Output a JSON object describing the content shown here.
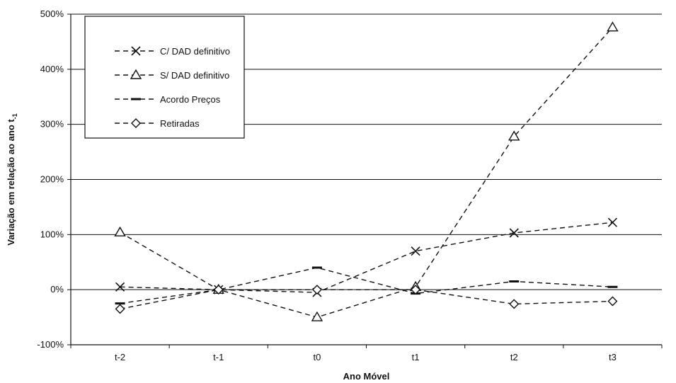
{
  "chart_data": {
    "type": "line",
    "xlabel": "Ano Móvel",
    "ylabel": "Variação em relação ao ano t",
    "ylabel_sub": "-1",
    "categories": [
      "t-2",
      "t-1",
      "t0",
      "t1",
      "t2",
      "t3"
    ],
    "ylim": [
      -100,
      500
    ],
    "yticks": [
      -100,
      0,
      100,
      200,
      300,
      400,
      500
    ],
    "ytick_labels": [
      "-100%",
      "0%",
      "100%",
      "200%",
      "300%",
      "400%",
      "500%"
    ],
    "grid": "horizontal",
    "legend_position": "top-left",
    "series": [
      {
        "name": "C/ DAD definitivo",
        "marker": "x",
        "values": [
          5,
          0,
          -5,
          70,
          103,
          122
        ]
      },
      {
        "name": "S/ DAD definitivo",
        "marker": "triangle",
        "values": [
          104,
          0,
          -50,
          5,
          278,
          476
        ]
      },
      {
        "name": "Acordo Preços",
        "marker": "dash",
        "values": [
          -25,
          0,
          40,
          -7,
          15,
          5
        ]
      },
      {
        "name": "Retiradas",
        "marker": "diamond",
        "values": [
          -35,
          0,
          0,
          0,
          -26,
          -21
        ]
      }
    ]
  }
}
